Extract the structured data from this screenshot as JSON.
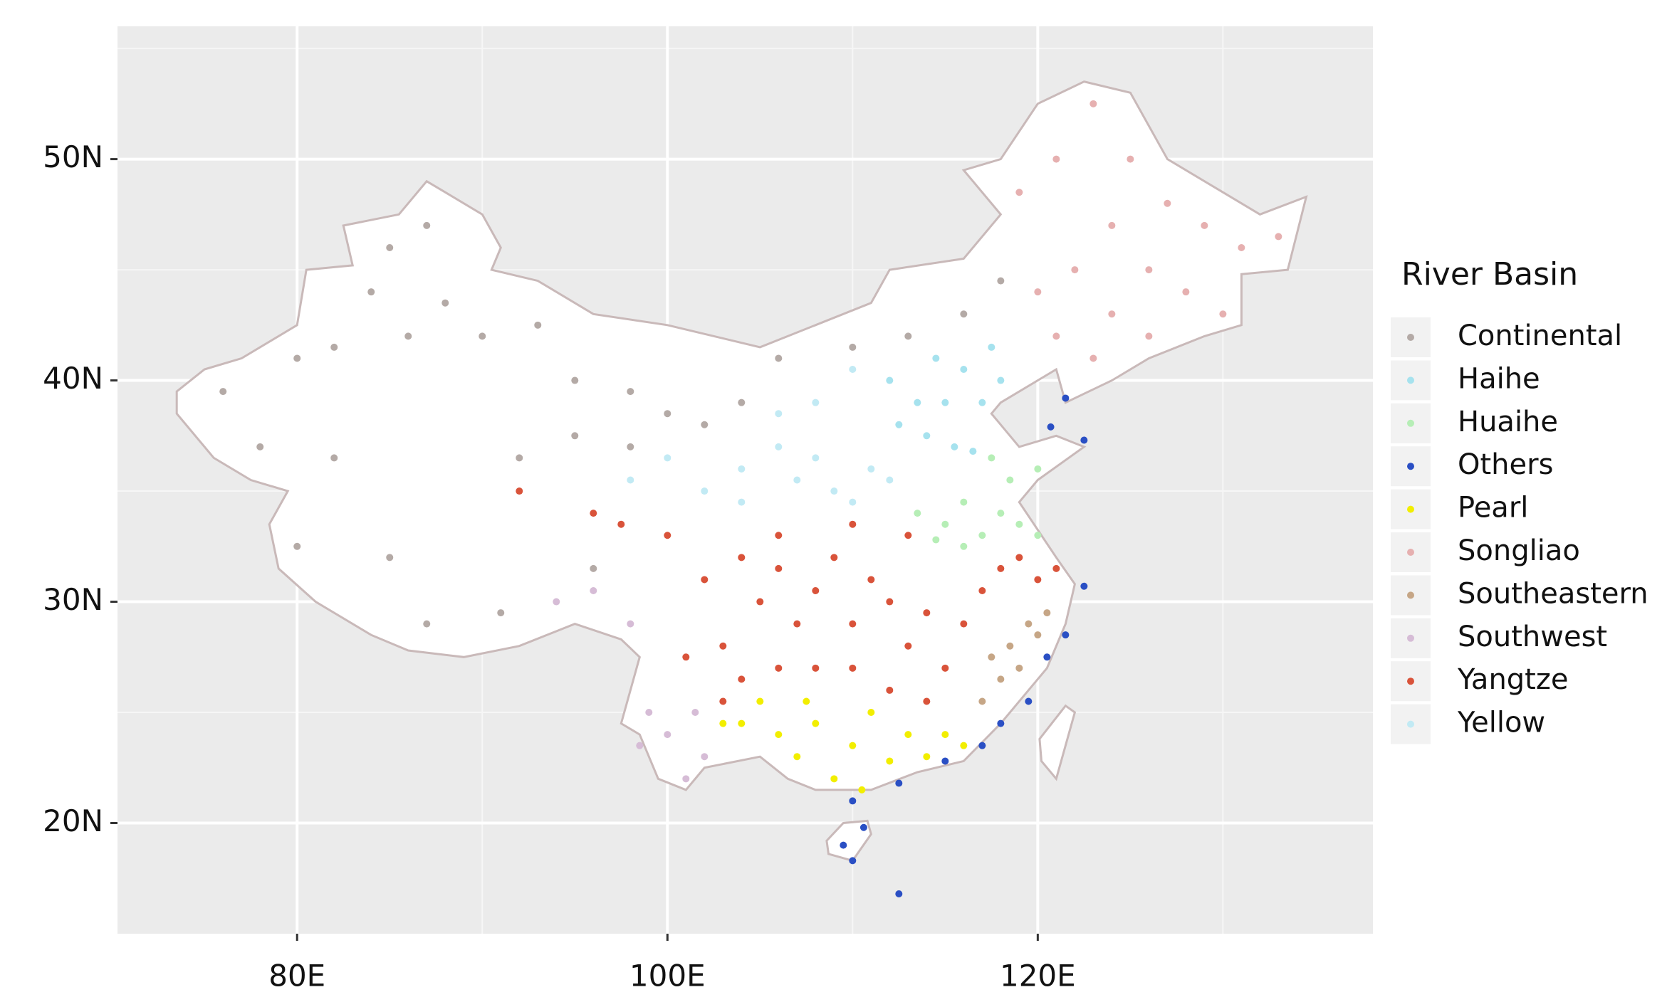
{
  "chart_data": {
    "type": "scatter",
    "xlim": [
      70.3,
      138.1
    ],
    "ylim": [
      15,
      56
    ],
    "xticks": [
      {
        "value": 80,
        "label": "80E"
      },
      {
        "value": 100,
        "label": "100E"
      },
      {
        "value": 120,
        "label": "120E"
      }
    ],
    "yticks": [
      {
        "value": 20,
        "label": "20N"
      },
      {
        "value": 30,
        "label": "30N"
      },
      {
        "value": 40,
        "label": "40N"
      },
      {
        "value": 50,
        "label": "50N"
      }
    ],
    "minor_xticks": [
      90,
      110,
      130
    ],
    "minor_yticks": [
      25,
      35,
      45,
      55
    ],
    "grid": true,
    "legend_title": "River Basin",
    "legend": "right",
    "series": [
      {
        "name": "Continental",
        "color": "#b4aaa6",
        "x": [
          76,
          78,
          80,
          82,
          84,
          86,
          88,
          87,
          85,
          90,
          93,
          95,
          98,
          100,
          102,
          104,
          106,
          110,
          113,
          116,
          118,
          82,
          87,
          91,
          95,
          98,
          92,
          96,
          80,
          85
        ],
        "values": [
          39.5,
          37,
          41,
          41.5,
          44,
          42,
          43.5,
          47,
          46,
          42,
          42.5,
          40,
          39.5,
          38.5,
          38,
          39,
          41,
          41.5,
          42,
          43,
          44.5,
          36.5,
          29,
          29.5,
          37.5,
          37,
          36.5,
          31.5,
          32.5,
          32
        ]
      },
      {
        "name": "Haihe",
        "color": "#a6e2ee",
        "x": [
          112,
          113.5,
          114,
          115,
          116,
          117,
          118,
          112.5,
          115.5,
          116.5,
          114.5,
          117.5
        ],
        "values": [
          40,
          39,
          37.5,
          39,
          40.5,
          39,
          40,
          38,
          37,
          36.8,
          41,
          41.5
        ]
      },
      {
        "name": "Huaihe",
        "color": "#b6eeb6",
        "x": [
          113.5,
          115,
          116,
          117,
          118,
          119,
          120,
          116,
          118.5,
          120,
          117.5,
          114.5
        ],
        "values": [
          34,
          33.5,
          34.5,
          33,
          34,
          33.5,
          33,
          32.5,
          35.5,
          36,
          36.5,
          32.8
        ]
      },
      {
        "name": "Others",
        "color": "#2a4fc4",
        "x": [
          121.5,
          120.7,
          122.5,
          122.5,
          121.5,
          120.5,
          119.5,
          118,
          117,
          115,
          112.5,
          110,
          109.5,
          110,
          110.6,
          112.5
        ],
        "values": [
          39.2,
          37.9,
          37.3,
          30.7,
          28.5,
          27.5,
          25.5,
          24.5,
          23.5,
          22.8,
          21.8,
          21,
          19,
          18.3,
          19.8,
          16.8
        ]
      },
      {
        "name": "Pearl",
        "color": "#f2ee00",
        "x": [
          104,
          105,
          106,
          107,
          108,
          109,
          110,
          111,
          112,
          113,
          114,
          115,
          116,
          110.5,
          103,
          107.5
        ],
        "values": [
          24.5,
          25.5,
          24,
          23,
          24.5,
          22,
          23.5,
          25,
          22.8,
          24,
          23,
          24,
          23.5,
          21.5,
          24.5,
          25.5
        ]
      },
      {
        "name": "Songliao",
        "color": "#e6b0b0",
        "x": [
          119,
          121,
          123,
          125,
          127,
          129,
          131,
          124,
          122,
          126,
          128,
          124,
          121,
          123,
          126,
          130,
          120,
          133
        ],
        "values": [
          48.5,
          50,
          52.5,
          50,
          48,
          47,
          46,
          47,
          45,
          45,
          44,
          43,
          42,
          41,
          42,
          43,
          44,
          46.5
        ]
      },
      {
        "name": "Southeastern",
        "color": "#c6a686",
        "x": [
          118.5,
          119.5,
          120.5,
          118,
          117,
          119,
          120,
          117.5
        ],
        "values": [
          28,
          29,
          29.5,
          26.5,
          25.5,
          27,
          28.5,
          27.5
        ]
      },
      {
        "name": "Southwest",
        "color": "#d6bcd6",
        "x": [
          100,
          101,
          102,
          99,
          98.5,
          101.5,
          94,
          96,
          98
        ],
        "values": [
          24,
          22,
          23,
          25,
          23.5,
          25,
          30,
          30.5,
          29
        ]
      },
      {
        "name": "Yangtze",
        "color": "#d9533a",
        "x": [
          92,
          96,
          97.5,
          100,
          102,
          104,
          105,
          106,
          107,
          108,
          109,
          110,
          111,
          112,
          113,
          114,
          115,
          116,
          117,
          118,
          119,
          120,
          121,
          103,
          104,
          106,
          108,
          110,
          112,
          114,
          103,
          101,
          113,
          110,
          106
        ],
        "values": [
          35,
          34,
          33.5,
          33,
          31,
          32,
          30,
          31.5,
          29,
          30.5,
          32,
          29,
          31,
          30,
          28,
          29.5,
          27,
          29,
          30.5,
          31.5,
          32,
          31,
          31.5,
          28,
          26.5,
          27,
          27,
          27,
          26,
          25.5,
          25.5,
          27.5,
          33,
          33.5,
          33
        ]
      },
      {
        "name": "Yellow",
        "color": "#c2eaf4",
        "x": [
          98,
          100,
          102,
          104,
          106,
          107,
          108,
          109,
          110,
          111,
          112,
          104,
          108,
          110,
          106
        ],
        "values": [
          35.5,
          36.5,
          35,
          36,
          37,
          35.5,
          36.5,
          35,
          34.5,
          36,
          35.5,
          34.5,
          39,
          40.5,
          38.5
        ]
      }
    ]
  }
}
